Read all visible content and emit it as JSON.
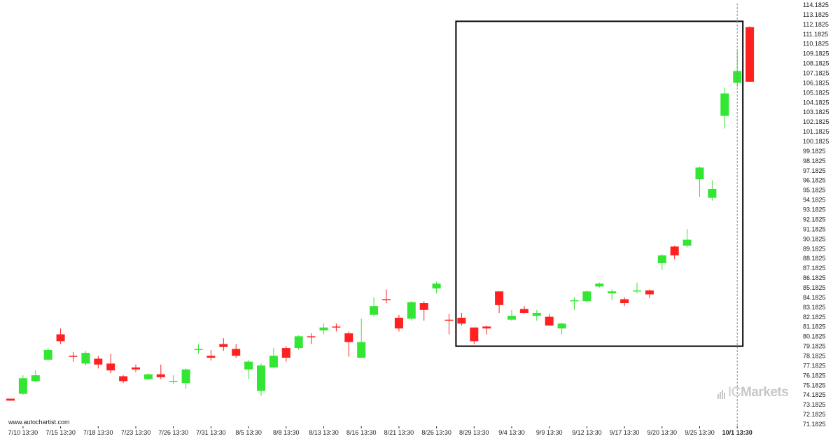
{
  "chart_data": {
    "type": "candlestick",
    "y_axis": {
      "side": "right",
      "ylim": [
        71.1825,
        114.1825
      ],
      "tick_labels": [
        "114.1825",
        "113.1825",
        "112.1825",
        "111.1825",
        "110.1825",
        "109.1825",
        "108.1825",
        "107.1825",
        "106.1825",
        "105.1825",
        "104.1825",
        "103.1825",
        "102.1825",
        "101.1825",
        "100.1825",
        "99.1825",
        "98.1825",
        "97.1825",
        "96.1825",
        "95.1825",
        "94.1825",
        "93.1825",
        "92.1825",
        "91.1825",
        "90.1825",
        "89.1825",
        "88.1825",
        "87.1825",
        "86.1825",
        "85.1825",
        "84.1825",
        "83.1825",
        "82.1825",
        "81.1825",
        "80.1825",
        "79.1825",
        "78.1825",
        "77.1825",
        "76.1825",
        "75.1825",
        "74.1825",
        "73.1825",
        "72.1825",
        "71.1825"
      ]
    },
    "x_axis": {
      "tick_labels": [
        {
          "index": 1,
          "label": "7/10 13:30"
        },
        {
          "index": 4,
          "label": "7/15 13:30"
        },
        {
          "index": 7,
          "label": "7/18 13:30"
        },
        {
          "index": 10,
          "label": "7/23 13:30"
        },
        {
          "index": 13,
          "label": "7/26 13:30"
        },
        {
          "index": 16,
          "label": "7/31 13:30"
        },
        {
          "index": 19,
          "label": "8/5 13:30"
        },
        {
          "index": 22,
          "label": "8/8 13:30"
        },
        {
          "index": 25,
          "label": "8/13 13:30"
        },
        {
          "index": 28,
          "label": "8/16 13:30"
        },
        {
          "index": 31,
          "label": "8/21 13:30"
        },
        {
          "index": 34,
          "label": "8/26 13:30"
        },
        {
          "index": 37,
          "label": "8/29 13:30"
        },
        {
          "index": 40,
          "label": "9/4 13:30"
        },
        {
          "index": 43,
          "label": "9/9 13:30"
        },
        {
          "index": 46,
          "label": "9/12 13:30"
        },
        {
          "index": 49,
          "label": "9/17 13:30"
        },
        {
          "index": 52,
          "label": "9/20 13:30"
        },
        {
          "index": 55,
          "label": "9/25 13:30"
        },
        {
          "index": 58,
          "label": "10/1 13:30",
          "bold": true
        }
      ]
    },
    "candles": [
      {
        "o": 73.8,
        "h": 73.8,
        "l": 73.6,
        "c": 73.6
      },
      {
        "o": 74.3,
        "h": 76.2,
        "l": 74.2,
        "c": 75.9
      },
      {
        "o": 75.6,
        "h": 76.7,
        "l": 75.5,
        "c": 76.2
      },
      {
        "o": 77.8,
        "h": 79.0,
        "l": 77.7,
        "c": 78.8
      },
      {
        "o": 80.4,
        "h": 81.0,
        "l": 79.4,
        "c": 79.7
      },
      {
        "o": 78.2,
        "h": 78.6,
        "l": 77.6,
        "c": 78.1
      },
      {
        "o": 77.4,
        "h": 78.7,
        "l": 77.2,
        "c": 78.5
      },
      {
        "o": 77.9,
        "h": 78.2,
        "l": 76.9,
        "c": 77.3
      },
      {
        "o": 77.4,
        "h": 78.4,
        "l": 76.4,
        "c": 76.7
      },
      {
        "o": 76.1,
        "h": 76.2,
        "l": 75.4,
        "c": 75.6
      },
      {
        "o": 77.0,
        "h": 77.3,
        "l": 76.5,
        "c": 76.8
      },
      {
        "o": 75.8,
        "h": 76.4,
        "l": 75.7,
        "c": 76.3
      },
      {
        "o": 76.3,
        "h": 77.3,
        "l": 75.8,
        "c": 76.0
      },
      {
        "o": 75.6,
        "h": 76.2,
        "l": 75.3,
        "c": 75.6
      },
      {
        "o": 75.4,
        "h": 76.9,
        "l": 74.8,
        "c": 76.8
      },
      {
        "o": 78.8,
        "h": 79.4,
        "l": 78.4,
        "c": 78.9
      },
      {
        "o": 78.2,
        "h": 78.8,
        "l": 77.7,
        "c": 78.0
      },
      {
        "o": 79.4,
        "h": 80.0,
        "l": 78.7,
        "c": 79.1
      },
      {
        "o": 78.9,
        "h": 79.4,
        "l": 78.0,
        "c": 78.2
      },
      {
        "o": 76.8,
        "h": 77.8,
        "l": 75.8,
        "c": 77.6
      },
      {
        "o": 74.6,
        "h": 77.4,
        "l": 74.1,
        "c": 77.2
      },
      {
        "o": 77.0,
        "h": 79.0,
        "l": 76.9,
        "c": 78.2
      },
      {
        "o": 79.0,
        "h": 79.2,
        "l": 77.6,
        "c": 78.0
      },
      {
        "o": 79.0,
        "h": 80.3,
        "l": 78.8,
        "c": 80.2
      },
      {
        "o": 80.2,
        "h": 80.5,
        "l": 79.4,
        "c": 80.1
      },
      {
        "o": 80.8,
        "h": 81.5,
        "l": 80.4,
        "c": 81.1
      },
      {
        "o": 81.2,
        "h": 81.5,
        "l": 80.7,
        "c": 81.1
      },
      {
        "o": 80.5,
        "h": 80.7,
        "l": 78.1,
        "c": 79.6
      },
      {
        "o": 78.0,
        "h": 82.0,
        "l": 78.0,
        "c": 79.6
      },
      {
        "o": 82.4,
        "h": 84.2,
        "l": 82.2,
        "c": 83.3
      },
      {
        "o": 84.0,
        "h": 85.0,
        "l": 83.6,
        "c": 83.9
      },
      {
        "o": 82.1,
        "h": 82.4,
        "l": 80.7,
        "c": 81.0
      },
      {
        "o": 82.0,
        "h": 83.8,
        "l": 81.8,
        "c": 83.7
      },
      {
        "o": 83.6,
        "h": 83.8,
        "l": 81.8,
        "c": 82.9
      },
      {
        "o": 85.1,
        "h": 85.8,
        "l": 84.6,
        "c": 85.6
      },
      {
        "o": 81.9,
        "h": 82.5,
        "l": 80.4,
        "c": 81.8
      },
      {
        "o": 82.1,
        "h": 82.6,
        "l": 81.3,
        "c": 81.5
      },
      {
        "o": 81.1,
        "h": 81.1,
        "l": 79.4,
        "c": 79.7
      },
      {
        "o": 81.2,
        "h": 81.3,
        "l": 80.4,
        "c": 81.0
      },
      {
        "o": 84.8,
        "h": 84.8,
        "l": 82.6,
        "c": 83.4
      },
      {
        "o": 81.9,
        "h": 82.9,
        "l": 81.8,
        "c": 82.3
      },
      {
        "o": 83.0,
        "h": 83.3,
        "l": 82.5,
        "c": 82.6
      },
      {
        "o": 82.3,
        "h": 82.9,
        "l": 81.8,
        "c": 82.6
      },
      {
        "o": 82.2,
        "h": 82.5,
        "l": 81.3,
        "c": 81.3
      },
      {
        "o": 81.0,
        "h": 81.6,
        "l": 80.4,
        "c": 81.5
      },
      {
        "o": 83.8,
        "h": 84.2,
        "l": 82.9,
        "c": 83.9
      },
      {
        "o": 83.8,
        "h": 84.9,
        "l": 83.7,
        "c": 84.8
      },
      {
        "o": 85.3,
        "h": 85.7,
        "l": 85.2,
        "c": 85.6
      },
      {
        "o": 84.6,
        "h": 85.0,
        "l": 83.9,
        "c": 84.8
      },
      {
        "o": 84.0,
        "h": 84.2,
        "l": 83.3,
        "c": 83.6
      },
      {
        "o": 84.8,
        "h": 85.7,
        "l": 84.6,
        "c": 84.9
      },
      {
        "o": 84.9,
        "h": 85.0,
        "l": 84.1,
        "c": 84.5
      },
      {
        "o": 87.7,
        "h": 88.6,
        "l": 87.0,
        "c": 88.5
      },
      {
        "o": 89.4,
        "h": 89.5,
        "l": 88.1,
        "c": 88.5
      },
      {
        "o": 89.5,
        "h": 91.2,
        "l": 89.3,
        "c": 90.1
      },
      {
        "o": 96.3,
        "h": 97.6,
        "l": 94.5,
        "c": 97.5
      },
      {
        "o": 94.4,
        "h": 96.2,
        "l": 94.1,
        "c": 95.3
      },
      {
        "o": 102.8,
        "h": 105.7,
        "l": 101.5,
        "c": 105.1
      },
      {
        "o": 106.2,
        "h": 109.5,
        "l": 105.8,
        "c": 107.4
      },
      {
        "o": 111.9,
        "h": 112.0,
        "l": 106.3,
        "c": 106.3
      }
    ],
    "colors": {
      "up": "#33e633",
      "down": "#ff2020",
      "wick_up": "#33e633",
      "wick_down": "#ff2020",
      "box": "#000000",
      "cursor": "#888888",
      "axis_text": "#222222"
    },
    "highlight_box": {
      "start_index": 36,
      "end_index": 58,
      "y_low": 79.1825,
      "y_high": 112.5
    },
    "cursor_index": 58
  },
  "footer": {
    "source": "www.autochartist.com"
  },
  "brand": {
    "name_light": "IC",
    "name_bold": "Markets"
  }
}
